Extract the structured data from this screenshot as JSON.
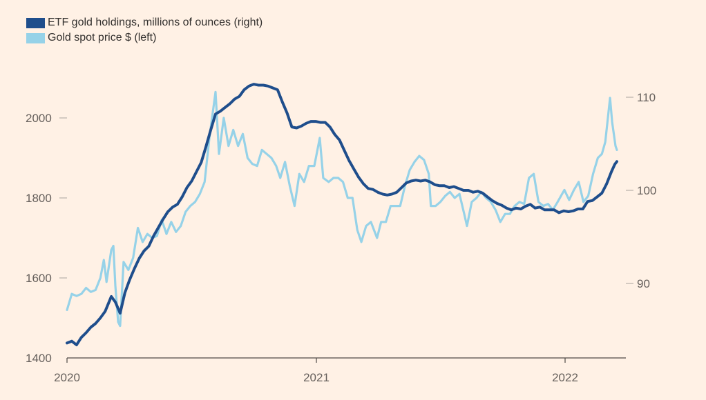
{
  "chart_data": {
    "type": "line",
    "title": "",
    "legend": {
      "placement": "top-left",
      "items": [
        {
          "label": "ETF gold holdings, millions of ounces (right)",
          "color": "#1F4E8C"
        },
        {
          "label": "Gold spot price $ (left)",
          "color": "#96D2E8"
        }
      ]
    },
    "x_axis": {
      "range": [
        "2020-01-01",
        "2022-03-31"
      ],
      "ticks": [
        {
          "date": "2020-01-01",
          "label": "2020"
        },
        {
          "date": "2021-01-01",
          "label": "2021"
        },
        {
          "date": "2022-01-01",
          "label": "2022"
        }
      ]
    },
    "y_left": {
      "label": "Gold spot price $",
      "ylim": [
        1400,
        2130
      ],
      "ticks": [
        1400,
        1600,
        1800,
        2000
      ]
    },
    "y_right": {
      "label": "ETF gold holdings, millions of ounces",
      "ylim": [
        83,
        112
      ],
      "ticks": [
        90,
        100,
        110
      ],
      "tick_labels": [
        "90",
        "100",
        "110"
      ]
    },
    "grid": false,
    "series": [
      {
        "name": "Gold spot price $ (left)",
        "axis": "left",
        "color": "#96D2E8",
        "points": [
          [
            "2020-01-01",
            1520
          ],
          [
            "2020-01-08",
            1560
          ],
          [
            "2020-01-15",
            1555
          ],
          [
            "2020-01-22",
            1560
          ],
          [
            "2020-01-29",
            1575
          ],
          [
            "2020-02-05",
            1565
          ],
          [
            "2020-02-12",
            1570
          ],
          [
            "2020-02-19",
            1600
          ],
          [
            "2020-02-24",
            1645
          ],
          [
            "2020-02-28",
            1590
          ],
          [
            "2020-03-06",
            1670
          ],
          [
            "2020-03-09",
            1680
          ],
          [
            "2020-03-12",
            1580
          ],
          [
            "2020-03-16",
            1490
          ],
          [
            "2020-03-19",
            1480
          ],
          [
            "2020-03-24",
            1640
          ],
          [
            "2020-03-31",
            1620
          ],
          [
            "2020-04-07",
            1650
          ],
          [
            "2020-04-14",
            1725
          ],
          [
            "2020-04-21",
            1690
          ],
          [
            "2020-04-28",
            1710
          ],
          [
            "2020-05-05",
            1700
          ],
          [
            "2020-05-12",
            1705
          ],
          [
            "2020-05-19",
            1745
          ],
          [
            "2020-05-26",
            1710
          ],
          [
            "2020-06-02",
            1740
          ],
          [
            "2020-06-09",
            1715
          ],
          [
            "2020-06-16",
            1730
          ],
          [
            "2020-06-23",
            1765
          ],
          [
            "2020-06-30",
            1780
          ],
          [
            "2020-07-07",
            1790
          ],
          [
            "2020-07-14",
            1810
          ],
          [
            "2020-07-21",
            1840
          ],
          [
            "2020-07-28",
            1950
          ],
          [
            "2020-08-06",
            2065
          ],
          [
            "2020-08-11",
            1910
          ],
          [
            "2020-08-18",
            2000
          ],
          [
            "2020-08-25",
            1930
          ],
          [
            "2020-09-01",
            1970
          ],
          [
            "2020-09-08",
            1930
          ],
          [
            "2020-09-15",
            1960
          ],
          [
            "2020-09-22",
            1900
          ],
          [
            "2020-09-29",
            1885
          ],
          [
            "2020-10-06",
            1880
          ],
          [
            "2020-10-13",
            1920
          ],
          [
            "2020-10-20",
            1910
          ],
          [
            "2020-10-27",
            1900
          ],
          [
            "2020-11-03",
            1880
          ],
          [
            "2020-11-09",
            1850
          ],
          [
            "2020-11-16",
            1890
          ],
          [
            "2020-11-23",
            1830
          ],
          [
            "2020-11-30",
            1780
          ],
          [
            "2020-12-07",
            1860
          ],
          [
            "2020-12-14",
            1840
          ],
          [
            "2020-12-21",
            1880
          ],
          [
            "2020-12-29",
            1880
          ],
          [
            "2021-01-06",
            1950
          ],
          [
            "2021-01-11",
            1850
          ],
          [
            "2021-01-19",
            1840
          ],
          [
            "2021-01-26",
            1850
          ],
          [
            "2021-02-02",
            1850
          ],
          [
            "2021-02-09",
            1840
          ],
          [
            "2021-02-16",
            1800
          ],
          [
            "2021-02-23",
            1800
          ],
          [
            "2021-03-02",
            1720
          ],
          [
            "2021-03-08",
            1690
          ],
          [
            "2021-03-15",
            1730
          ],
          [
            "2021-03-22",
            1740
          ],
          [
            "2021-03-31",
            1700
          ],
          [
            "2021-04-06",
            1740
          ],
          [
            "2021-04-13",
            1740
          ],
          [
            "2021-04-20",
            1780
          ],
          [
            "2021-04-27",
            1780
          ],
          [
            "2021-05-04",
            1780
          ],
          [
            "2021-05-11",
            1830
          ],
          [
            "2021-05-18",
            1870
          ],
          [
            "2021-05-25",
            1890
          ],
          [
            "2021-06-01",
            1905
          ],
          [
            "2021-06-08",
            1895
          ],
          [
            "2021-06-15",
            1860
          ],
          [
            "2021-06-18",
            1780
          ],
          [
            "2021-06-25",
            1780
          ],
          [
            "2021-07-02",
            1790
          ],
          [
            "2021-07-09",
            1805
          ],
          [
            "2021-07-16",
            1815
          ],
          [
            "2021-07-23",
            1800
          ],
          [
            "2021-07-30",
            1810
          ],
          [
            "2021-08-06",
            1760
          ],
          [
            "2021-08-10",
            1730
          ],
          [
            "2021-08-17",
            1790
          ],
          [
            "2021-08-24",
            1800
          ],
          [
            "2021-08-31",
            1815
          ],
          [
            "2021-09-07",
            1800
          ],
          [
            "2021-09-14",
            1790
          ],
          [
            "2021-09-21",
            1770
          ],
          [
            "2021-09-28",
            1740
          ],
          [
            "2021-10-05",
            1760
          ],
          [
            "2021-10-12",
            1760
          ],
          [
            "2021-10-19",
            1780
          ],
          [
            "2021-10-26",
            1790
          ],
          [
            "2021-11-02",
            1785
          ],
          [
            "2021-11-09",
            1850
          ],
          [
            "2021-11-16",
            1860
          ],
          [
            "2021-11-23",
            1790
          ],
          [
            "2021-11-30",
            1780
          ],
          [
            "2021-12-07",
            1785
          ],
          [
            "2021-12-14",
            1770
          ],
          [
            "2021-12-21",
            1790
          ],
          [
            "2021-12-31",
            1820
          ],
          [
            "2022-01-07",
            1795
          ],
          [
            "2022-01-14",
            1820
          ],
          [
            "2022-01-21",
            1840
          ],
          [
            "2022-01-28",
            1790
          ],
          [
            "2022-02-04",
            1805
          ],
          [
            "2022-02-11",
            1860
          ],
          [
            "2022-02-18",
            1900
          ],
          [
            "2022-02-24",
            1910
          ],
          [
            "2022-03-01",
            1940
          ],
          [
            "2022-03-08",
            2050
          ],
          [
            "2022-03-11",
            1990
          ],
          [
            "2022-03-16",
            1930
          ],
          [
            "2022-03-18",
            1920
          ]
        ]
      },
      {
        "name": "ETF gold holdings, millions of ounces (right)",
        "axis": "right",
        "color": "#1F4E8C",
        "points": [
          [
            "2020-01-01",
            83.6
          ],
          [
            "2020-01-08",
            83.8
          ],
          [
            "2020-01-15",
            83.4
          ],
          [
            "2020-01-22",
            84.2
          ],
          [
            "2020-01-29",
            84.7
          ],
          [
            "2020-02-05",
            85.3
          ],
          [
            "2020-02-12",
            85.7
          ],
          [
            "2020-02-19",
            86.3
          ],
          [
            "2020-02-26",
            87.0
          ],
          [
            "2020-03-06",
            88.6
          ],
          [
            "2020-03-12",
            88.0
          ],
          [
            "2020-03-19",
            86.8
          ],
          [
            "2020-03-26",
            89.0
          ],
          [
            "2020-04-02",
            90.4
          ],
          [
            "2020-04-09",
            91.6
          ],
          [
            "2020-04-16",
            92.7
          ],
          [
            "2020-04-23",
            93.5
          ],
          [
            "2020-04-30",
            94.0
          ],
          [
            "2020-05-07",
            95.1
          ],
          [
            "2020-05-14",
            96.0
          ],
          [
            "2020-05-21",
            96.9
          ],
          [
            "2020-05-28",
            97.7
          ],
          [
            "2020-06-04",
            98.2
          ],
          [
            "2020-06-11",
            98.5
          ],
          [
            "2020-06-18",
            99.3
          ],
          [
            "2020-06-25",
            100.3
          ],
          [
            "2020-07-02",
            101.0
          ],
          [
            "2020-07-09",
            102.0
          ],
          [
            "2020-07-16",
            103.0
          ],
          [
            "2020-07-23",
            104.7
          ],
          [
            "2020-07-30",
            106.5
          ],
          [
            "2020-08-06",
            108.2
          ],
          [
            "2020-08-13",
            108.5
          ],
          [
            "2020-08-20",
            108.9
          ],
          [
            "2020-08-27",
            109.3
          ],
          [
            "2020-09-03",
            109.8
          ],
          [
            "2020-09-10",
            110.1
          ],
          [
            "2020-09-17",
            110.8
          ],
          [
            "2020-09-24",
            111.2
          ],
          [
            "2020-10-01",
            111.4
          ],
          [
            "2020-10-08",
            111.3
          ],
          [
            "2020-10-15",
            111.3
          ],
          [
            "2020-10-22",
            111.2
          ],
          [
            "2020-10-29",
            111.0
          ],
          [
            "2020-11-05",
            110.8
          ],
          [
            "2020-11-12",
            109.5
          ],
          [
            "2020-11-19",
            108.3
          ],
          [
            "2020-11-26",
            106.8
          ],
          [
            "2020-12-03",
            106.7
          ],
          [
            "2020-12-10",
            106.9
          ],
          [
            "2020-12-17",
            107.2
          ],
          [
            "2020-12-24",
            107.4
          ],
          [
            "2020-12-31",
            107.4
          ],
          [
            "2021-01-07",
            107.3
          ],
          [
            "2021-01-14",
            107.3
          ],
          [
            "2021-01-21",
            106.8
          ],
          [
            "2021-01-28",
            106.0
          ],
          [
            "2021-02-04",
            105.4
          ],
          [
            "2021-02-11",
            104.3
          ],
          [
            "2021-02-18",
            103.2
          ],
          [
            "2021-02-25",
            102.3
          ],
          [
            "2021-03-04",
            101.4
          ],
          [
            "2021-03-11",
            100.7
          ],
          [
            "2021-03-18",
            100.2
          ],
          [
            "2021-03-25",
            100.1
          ],
          [
            "2021-04-01",
            99.8
          ],
          [
            "2021-04-08",
            99.6
          ],
          [
            "2021-04-15",
            99.5
          ],
          [
            "2021-04-22",
            99.6
          ],
          [
            "2021-04-29",
            99.8
          ],
          [
            "2021-05-06",
            100.3
          ],
          [
            "2021-05-13",
            100.8
          ],
          [
            "2021-05-20",
            101.0
          ],
          [
            "2021-05-27",
            101.1
          ],
          [
            "2021-06-03",
            101.0
          ],
          [
            "2021-06-10",
            101.1
          ],
          [
            "2021-06-17",
            100.9
          ],
          [
            "2021-06-24",
            100.6
          ],
          [
            "2021-07-01",
            100.5
          ],
          [
            "2021-07-08",
            100.5
          ],
          [
            "2021-07-15",
            100.3
          ],
          [
            "2021-07-22",
            100.4
          ],
          [
            "2021-07-29",
            100.2
          ],
          [
            "2021-08-05",
            100.0
          ],
          [
            "2021-08-12",
            100.0
          ],
          [
            "2021-08-19",
            99.8
          ],
          [
            "2021-08-26",
            99.9
          ],
          [
            "2021-09-02",
            99.7
          ],
          [
            "2021-09-09",
            99.3
          ],
          [
            "2021-09-16",
            98.9
          ],
          [
            "2021-09-23",
            98.6
          ],
          [
            "2021-09-30",
            98.4
          ],
          [
            "2021-10-07",
            98.1
          ],
          [
            "2021-10-14",
            97.9
          ],
          [
            "2021-10-21",
            98.1
          ],
          [
            "2021-10-28",
            98.0
          ],
          [
            "2021-11-04",
            98.3
          ],
          [
            "2021-11-11",
            98.5
          ],
          [
            "2021-11-18",
            98.1
          ],
          [
            "2021-11-25",
            98.2
          ],
          [
            "2021-12-02",
            97.9
          ],
          [
            "2021-12-09",
            97.9
          ],
          [
            "2021-12-16",
            97.9
          ],
          [
            "2021-12-23",
            97.6
          ],
          [
            "2021-12-30",
            97.8
          ],
          [
            "2022-01-06",
            97.7
          ],
          [
            "2022-01-13",
            97.8
          ],
          [
            "2022-01-20",
            98.0
          ],
          [
            "2022-01-27",
            98.0
          ],
          [
            "2022-02-03",
            98.8
          ],
          [
            "2022-02-10",
            98.9
          ],
          [
            "2022-02-17",
            99.3
          ],
          [
            "2022-02-24",
            99.7
          ],
          [
            "2022-03-03",
            100.7
          ],
          [
            "2022-03-10",
            102.0
          ],
          [
            "2022-03-15",
            102.8
          ],
          [
            "2022-03-18",
            103.1
          ]
        ]
      }
    ]
  }
}
